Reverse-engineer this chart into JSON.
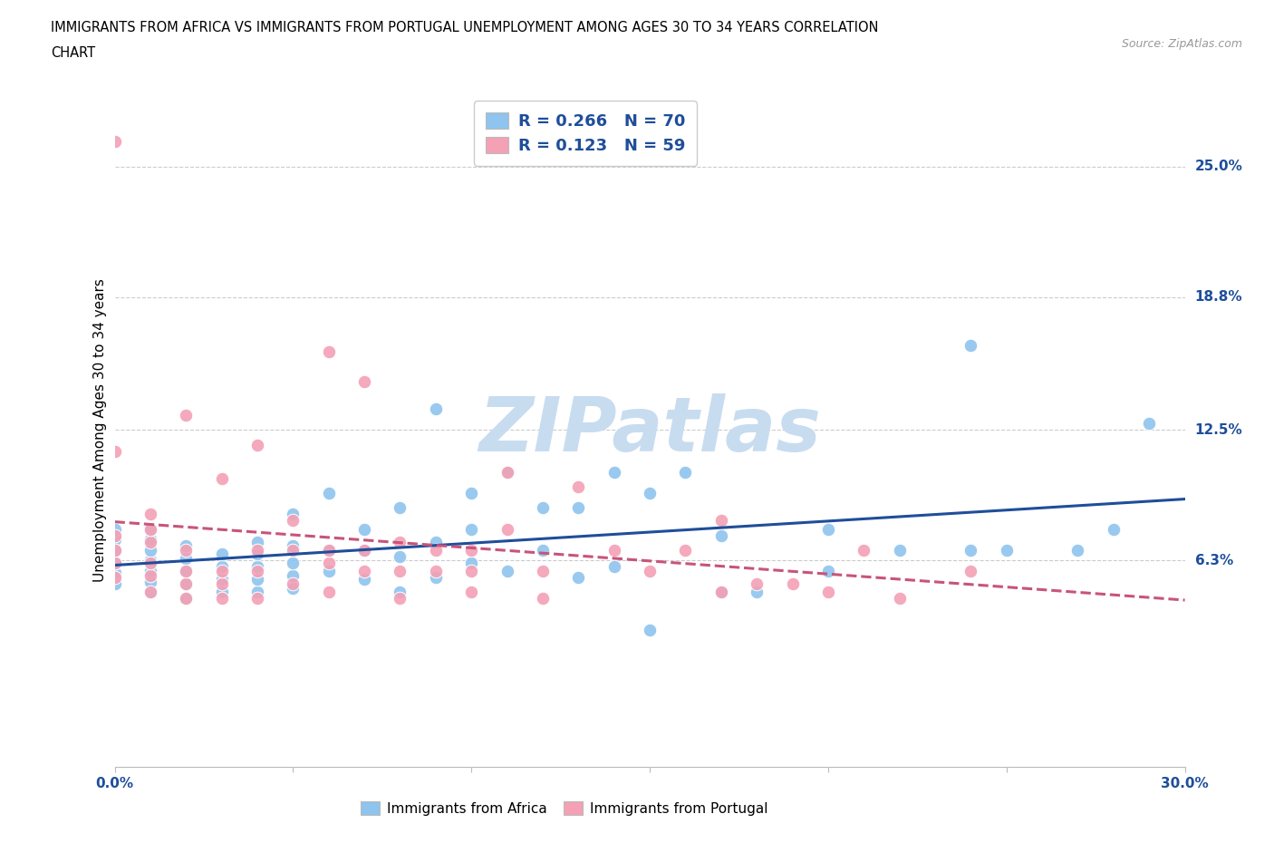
{
  "title_line1": "IMMIGRANTS FROM AFRICA VS IMMIGRANTS FROM PORTUGAL UNEMPLOYMENT AMONG AGES 30 TO 34 YEARS CORRELATION",
  "title_line2": "CHART",
  "source": "Source: ZipAtlas.com",
  "ylabel": "Unemployment Among Ages 30 to 34 years",
  "xlim": [
    0.0,
    0.3
  ],
  "ylim": [
    -0.035,
    0.285
  ],
  "ytick_positions": [
    0.063,
    0.125,
    0.188,
    0.25
  ],
  "ytick_labels": [
    "6.3%",
    "12.5%",
    "18.8%",
    "25.0%"
  ],
  "R_africa": 0.266,
  "N_africa": 70,
  "R_portugal": 0.123,
  "N_portugal": 59,
  "africa_color": "#8EC4EE",
  "portugal_color": "#F4A0B5",
  "africa_line_color": "#1F4E9A",
  "portugal_line_color": "#C8547A",
  "watermark_color": "#C8DCF0",
  "africa_x": [
    0.0,
    0.0,
    0.0,
    0.0,
    0.0,
    0.0,
    0.01,
    0.01,
    0.01,
    0.01,
    0.01,
    0.01,
    0.01,
    0.02,
    0.02,
    0.02,
    0.02,
    0.02,
    0.03,
    0.03,
    0.03,
    0.03,
    0.04,
    0.04,
    0.04,
    0.04,
    0.04,
    0.05,
    0.05,
    0.05,
    0.05,
    0.05,
    0.06,
    0.06,
    0.06,
    0.07,
    0.07,
    0.07,
    0.08,
    0.08,
    0.08,
    0.09,
    0.09,
    0.09,
    0.1,
    0.1,
    0.1,
    0.11,
    0.11,
    0.12,
    0.12,
    0.13,
    0.13,
    0.14,
    0.14,
    0.15,
    0.15,
    0.16,
    0.17,
    0.17,
    0.18,
    0.2,
    0.2,
    0.22,
    0.24,
    0.24,
    0.25,
    0.27,
    0.28,
    0.29
  ],
  "africa_y": [
    0.052,
    0.057,
    0.062,
    0.068,
    0.073,
    0.078,
    0.048,
    0.053,
    0.058,
    0.063,
    0.068,
    0.073,
    0.078,
    0.045,
    0.052,
    0.058,
    0.064,
    0.07,
    0.048,
    0.054,
    0.06,
    0.066,
    0.048,
    0.054,
    0.06,
    0.066,
    0.072,
    0.05,
    0.056,
    0.062,
    0.07,
    0.085,
    0.058,
    0.068,
    0.095,
    0.054,
    0.068,
    0.078,
    0.048,
    0.065,
    0.088,
    0.055,
    0.072,
    0.135,
    0.062,
    0.078,
    0.095,
    0.058,
    0.105,
    0.068,
    0.088,
    0.055,
    0.088,
    0.06,
    0.105,
    0.03,
    0.095,
    0.105,
    0.048,
    0.075,
    0.048,
    0.058,
    0.078,
    0.068,
    0.068,
    0.165,
    0.068,
    0.068,
    0.078,
    0.128
  ],
  "portugal_x": [
    0.0,
    0.0,
    0.0,
    0.0,
    0.0,
    0.01,
    0.01,
    0.01,
    0.01,
    0.01,
    0.01,
    0.02,
    0.02,
    0.02,
    0.02,
    0.02,
    0.03,
    0.03,
    0.03,
    0.03,
    0.04,
    0.04,
    0.04,
    0.04,
    0.05,
    0.05,
    0.05,
    0.06,
    0.06,
    0.06,
    0.06,
    0.07,
    0.07,
    0.07,
    0.08,
    0.08,
    0.08,
    0.09,
    0.09,
    0.1,
    0.1,
    0.1,
    0.11,
    0.11,
    0.12,
    0.12,
    0.13,
    0.14,
    0.15,
    0.16,
    0.17,
    0.17,
    0.18,
    0.19,
    0.2,
    0.21,
    0.22,
    0.24,
    0.0
  ],
  "portugal_y": [
    0.055,
    0.062,
    0.068,
    0.075,
    0.262,
    0.048,
    0.056,
    0.062,
    0.072,
    0.078,
    0.085,
    0.045,
    0.052,
    0.058,
    0.068,
    0.132,
    0.045,
    0.052,
    0.058,
    0.102,
    0.045,
    0.058,
    0.068,
    0.118,
    0.052,
    0.068,
    0.082,
    0.048,
    0.062,
    0.068,
    0.162,
    0.058,
    0.068,
    0.148,
    0.045,
    0.058,
    0.072,
    0.058,
    0.068,
    0.048,
    0.058,
    0.068,
    0.078,
    0.105,
    0.045,
    0.058,
    0.098,
    0.068,
    0.058,
    0.068,
    0.048,
    0.082,
    0.052,
    0.052,
    0.048,
    0.068,
    0.045,
    0.058,
    0.115
  ]
}
